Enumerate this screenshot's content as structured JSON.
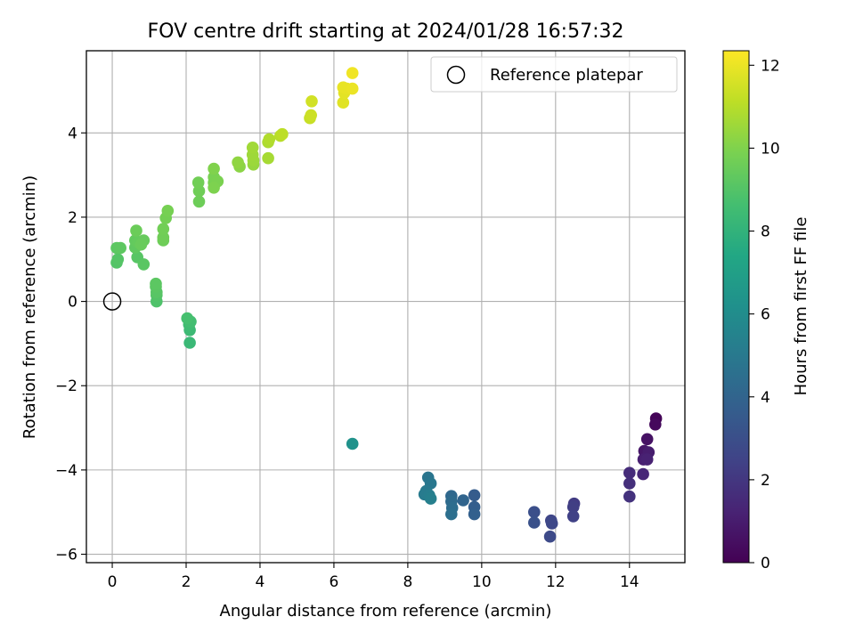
{
  "chart_data": {
    "type": "scatter",
    "title": "FOV centre drift starting at 2024/01/28 16:57:32",
    "xlabel": "Angular distance from reference (arcmin)",
    "ylabel": "Rotation from reference (arcmin)",
    "xlim": [
      -0.7,
      15.5
    ],
    "ylim": [
      -6.2,
      5.95
    ],
    "xticks": [
      0,
      2,
      4,
      6,
      8,
      10,
      12,
      14
    ],
    "yticks": [
      -6,
      -4,
      -2,
      0,
      2,
      4
    ],
    "xtick_labels": [
      "0",
      "2",
      "4",
      "6",
      "8",
      "10",
      "12",
      "14"
    ],
    "ytick_labels": [
      "−6",
      "−4",
      "−2",
      "0",
      "2",
      "4"
    ],
    "grid": true,
    "legend": {
      "position": "top-right",
      "entries": [
        "Reference platepar"
      ]
    },
    "reference_point": {
      "label": "Reference platepar",
      "x": 0,
      "y": 0,
      "marker": "open-circle"
    },
    "colorbar": {
      "label": "Hours from first FF file",
      "colormap": "viridis",
      "range": [
        0,
        12.35
      ],
      "ticks": [
        0,
        2,
        4,
        6,
        8,
        10,
        12
      ],
      "tick_labels": [
        "0",
        "2",
        "4",
        "6",
        "8",
        "10",
        "12"
      ]
    },
    "columns": [
      "x",
      "y",
      "hours"
    ],
    "points": [
      [
        14.72,
        -2.78,
        0.1
      ],
      [
        14.7,
        -2.92,
        0.3
      ],
      [
        14.48,
        -3.27,
        0.6
      ],
      [
        14.4,
        -3.55,
        0.8
      ],
      [
        14.52,
        -3.58,
        1.0
      ],
      [
        14.38,
        -3.75,
        1.1
      ],
      [
        14.48,
        -3.75,
        1.2
      ],
      [
        14.37,
        -4.1,
        1.4
      ],
      [
        14.0,
        -4.07,
        1.6
      ],
      [
        14.0,
        -4.32,
        1.7
      ],
      [
        14.0,
        -4.63,
        1.8
      ],
      [
        12.5,
        -4.8,
        2.2
      ],
      [
        12.48,
        -4.88,
        2.3
      ],
      [
        12.48,
        -5.1,
        2.4
      ],
      [
        11.88,
        -5.2,
        2.6
      ],
      [
        11.9,
        -5.27,
        2.7
      ],
      [
        11.85,
        -5.58,
        2.8
      ],
      [
        11.42,
        -5.0,
        3.0
      ],
      [
        11.42,
        -5.25,
        3.1
      ],
      [
        9.8,
        -4.6,
        3.6
      ],
      [
        9.8,
        -4.88,
        3.7
      ],
      [
        9.8,
        -5.05,
        3.8
      ],
      [
        9.5,
        -4.72,
        4.0
      ],
      [
        9.18,
        -4.62,
        4.2
      ],
      [
        9.18,
        -4.75,
        4.3
      ],
      [
        9.2,
        -4.9,
        4.4
      ],
      [
        9.18,
        -5.05,
        4.5
      ],
      [
        8.55,
        -4.18,
        4.8
      ],
      [
        8.62,
        -4.32,
        4.9
      ],
      [
        8.5,
        -4.5,
        5.0
      ],
      [
        8.45,
        -4.58,
        5.1
      ],
      [
        8.58,
        -4.6,
        5.2
      ],
      [
        8.62,
        -4.68,
        5.3
      ],
      [
        6.5,
        -3.38,
        6.3
      ],
      [
        2.1,
        -0.98,
        8.3
      ],
      [
        2.1,
        -0.68,
        8.4
      ],
      [
        2.08,
        -0.55,
        8.5
      ],
      [
        2.12,
        -0.48,
        8.6
      ],
      [
        2.03,
        -0.4,
        8.7
      ],
      [
        1.2,
        0.0,
        8.9
      ],
      [
        1.2,
        0.15,
        9.0
      ],
      [
        1.2,
        0.22,
        9.1
      ],
      [
        1.18,
        0.35,
        9.15
      ],
      [
        1.18,
        0.42,
        9.2
      ],
      [
        0.12,
        0.92,
        9.0
      ],
      [
        0.15,
        1.0,
        9.05
      ],
      [
        0.68,
        1.05,
        9.1
      ],
      [
        0.85,
        0.88,
        9.15
      ],
      [
        0.12,
        1.27,
        9.2
      ],
      [
        0.22,
        1.27,
        9.25
      ],
      [
        0.62,
        1.28,
        9.3
      ],
      [
        0.62,
        1.45,
        9.35
      ],
      [
        0.7,
        1.4,
        9.4
      ],
      [
        0.85,
        1.45,
        9.45
      ],
      [
        0.78,
        1.35,
        9.5
      ],
      [
        0.65,
        1.68,
        9.55
      ],
      [
        1.38,
        1.45,
        9.6
      ],
      [
        1.38,
        1.52,
        9.65
      ],
      [
        1.38,
        1.72,
        9.7
      ],
      [
        1.45,
        1.98,
        9.75
      ],
      [
        1.5,
        2.15,
        9.8
      ],
      [
        2.35,
        2.37,
        9.6
      ],
      [
        2.35,
        2.62,
        9.65
      ],
      [
        2.33,
        2.82,
        9.7
      ],
      [
        2.75,
        2.82,
        9.8
      ],
      [
        2.75,
        2.95,
        9.85
      ],
      [
        2.85,
        2.85,
        9.9
      ],
      [
        2.75,
        2.7,
        9.95
      ],
      [
        2.75,
        3.15,
        10.0
      ],
      [
        3.45,
        3.2,
        10.2
      ],
      [
        3.4,
        3.3,
        10.3
      ],
      [
        3.82,
        3.25,
        10.4
      ],
      [
        3.82,
        3.35,
        10.5
      ],
      [
        3.8,
        3.48,
        10.55
      ],
      [
        3.8,
        3.65,
        10.6
      ],
      [
        4.22,
        3.4,
        10.7
      ],
      [
        4.22,
        3.78,
        10.8
      ],
      [
        4.25,
        3.85,
        10.9
      ],
      [
        4.55,
        3.93,
        11.0
      ],
      [
        4.6,
        3.97,
        11.1
      ],
      [
        5.35,
        4.35,
        11.3
      ],
      [
        5.38,
        4.42,
        11.4
      ],
      [
        5.4,
        4.75,
        11.5
      ],
      [
        6.25,
        4.72,
        11.8
      ],
      [
        6.28,
        4.95,
        11.85
      ],
      [
        6.35,
        5.05,
        11.9
      ],
      [
        6.25,
        5.08,
        11.95
      ],
      [
        6.5,
        5.05,
        12.0
      ],
      [
        6.5,
        5.42,
        12.1
      ]
    ]
  }
}
